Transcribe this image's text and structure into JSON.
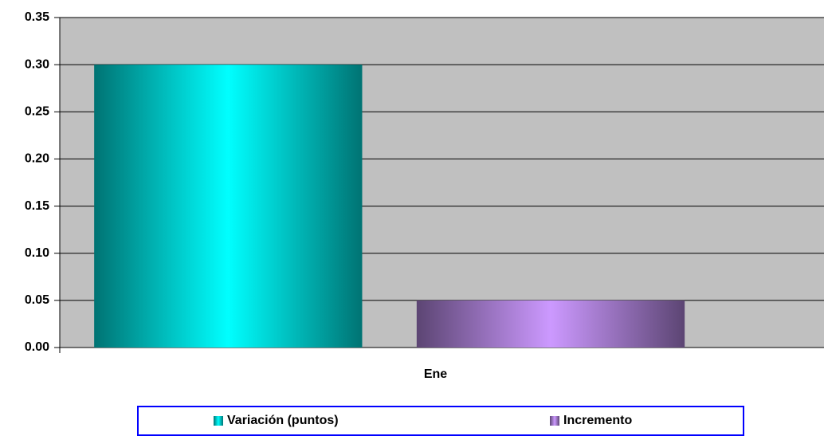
{
  "chart_data": {
    "type": "bar",
    "categories": [
      "Ene"
    ],
    "series": [
      {
        "name": "Variación (puntos)",
        "color": "#00ffff",
        "values": [
          0.3
        ]
      },
      {
        "name": "Incremento",
        "color": "#cc99ff",
        "values": [
          0.05
        ]
      }
    ],
    "ylim": [
      0,
      0.35
    ],
    "yticks": [
      {
        "value": 0,
        "label": "0.00"
      },
      {
        "value": 0.05,
        "label": "0.05"
      },
      {
        "value": 0.1,
        "label": "0.10"
      },
      {
        "value": 0.15,
        "label": "0.15"
      },
      {
        "value": 0.2,
        "label": "0.20"
      },
      {
        "value": 0.25,
        "label": "0.25"
      },
      {
        "value": 0.3,
        "label": "0.30"
      },
      {
        "value": 0.35,
        "label": "0.35"
      }
    ],
    "grid": true
  }
}
